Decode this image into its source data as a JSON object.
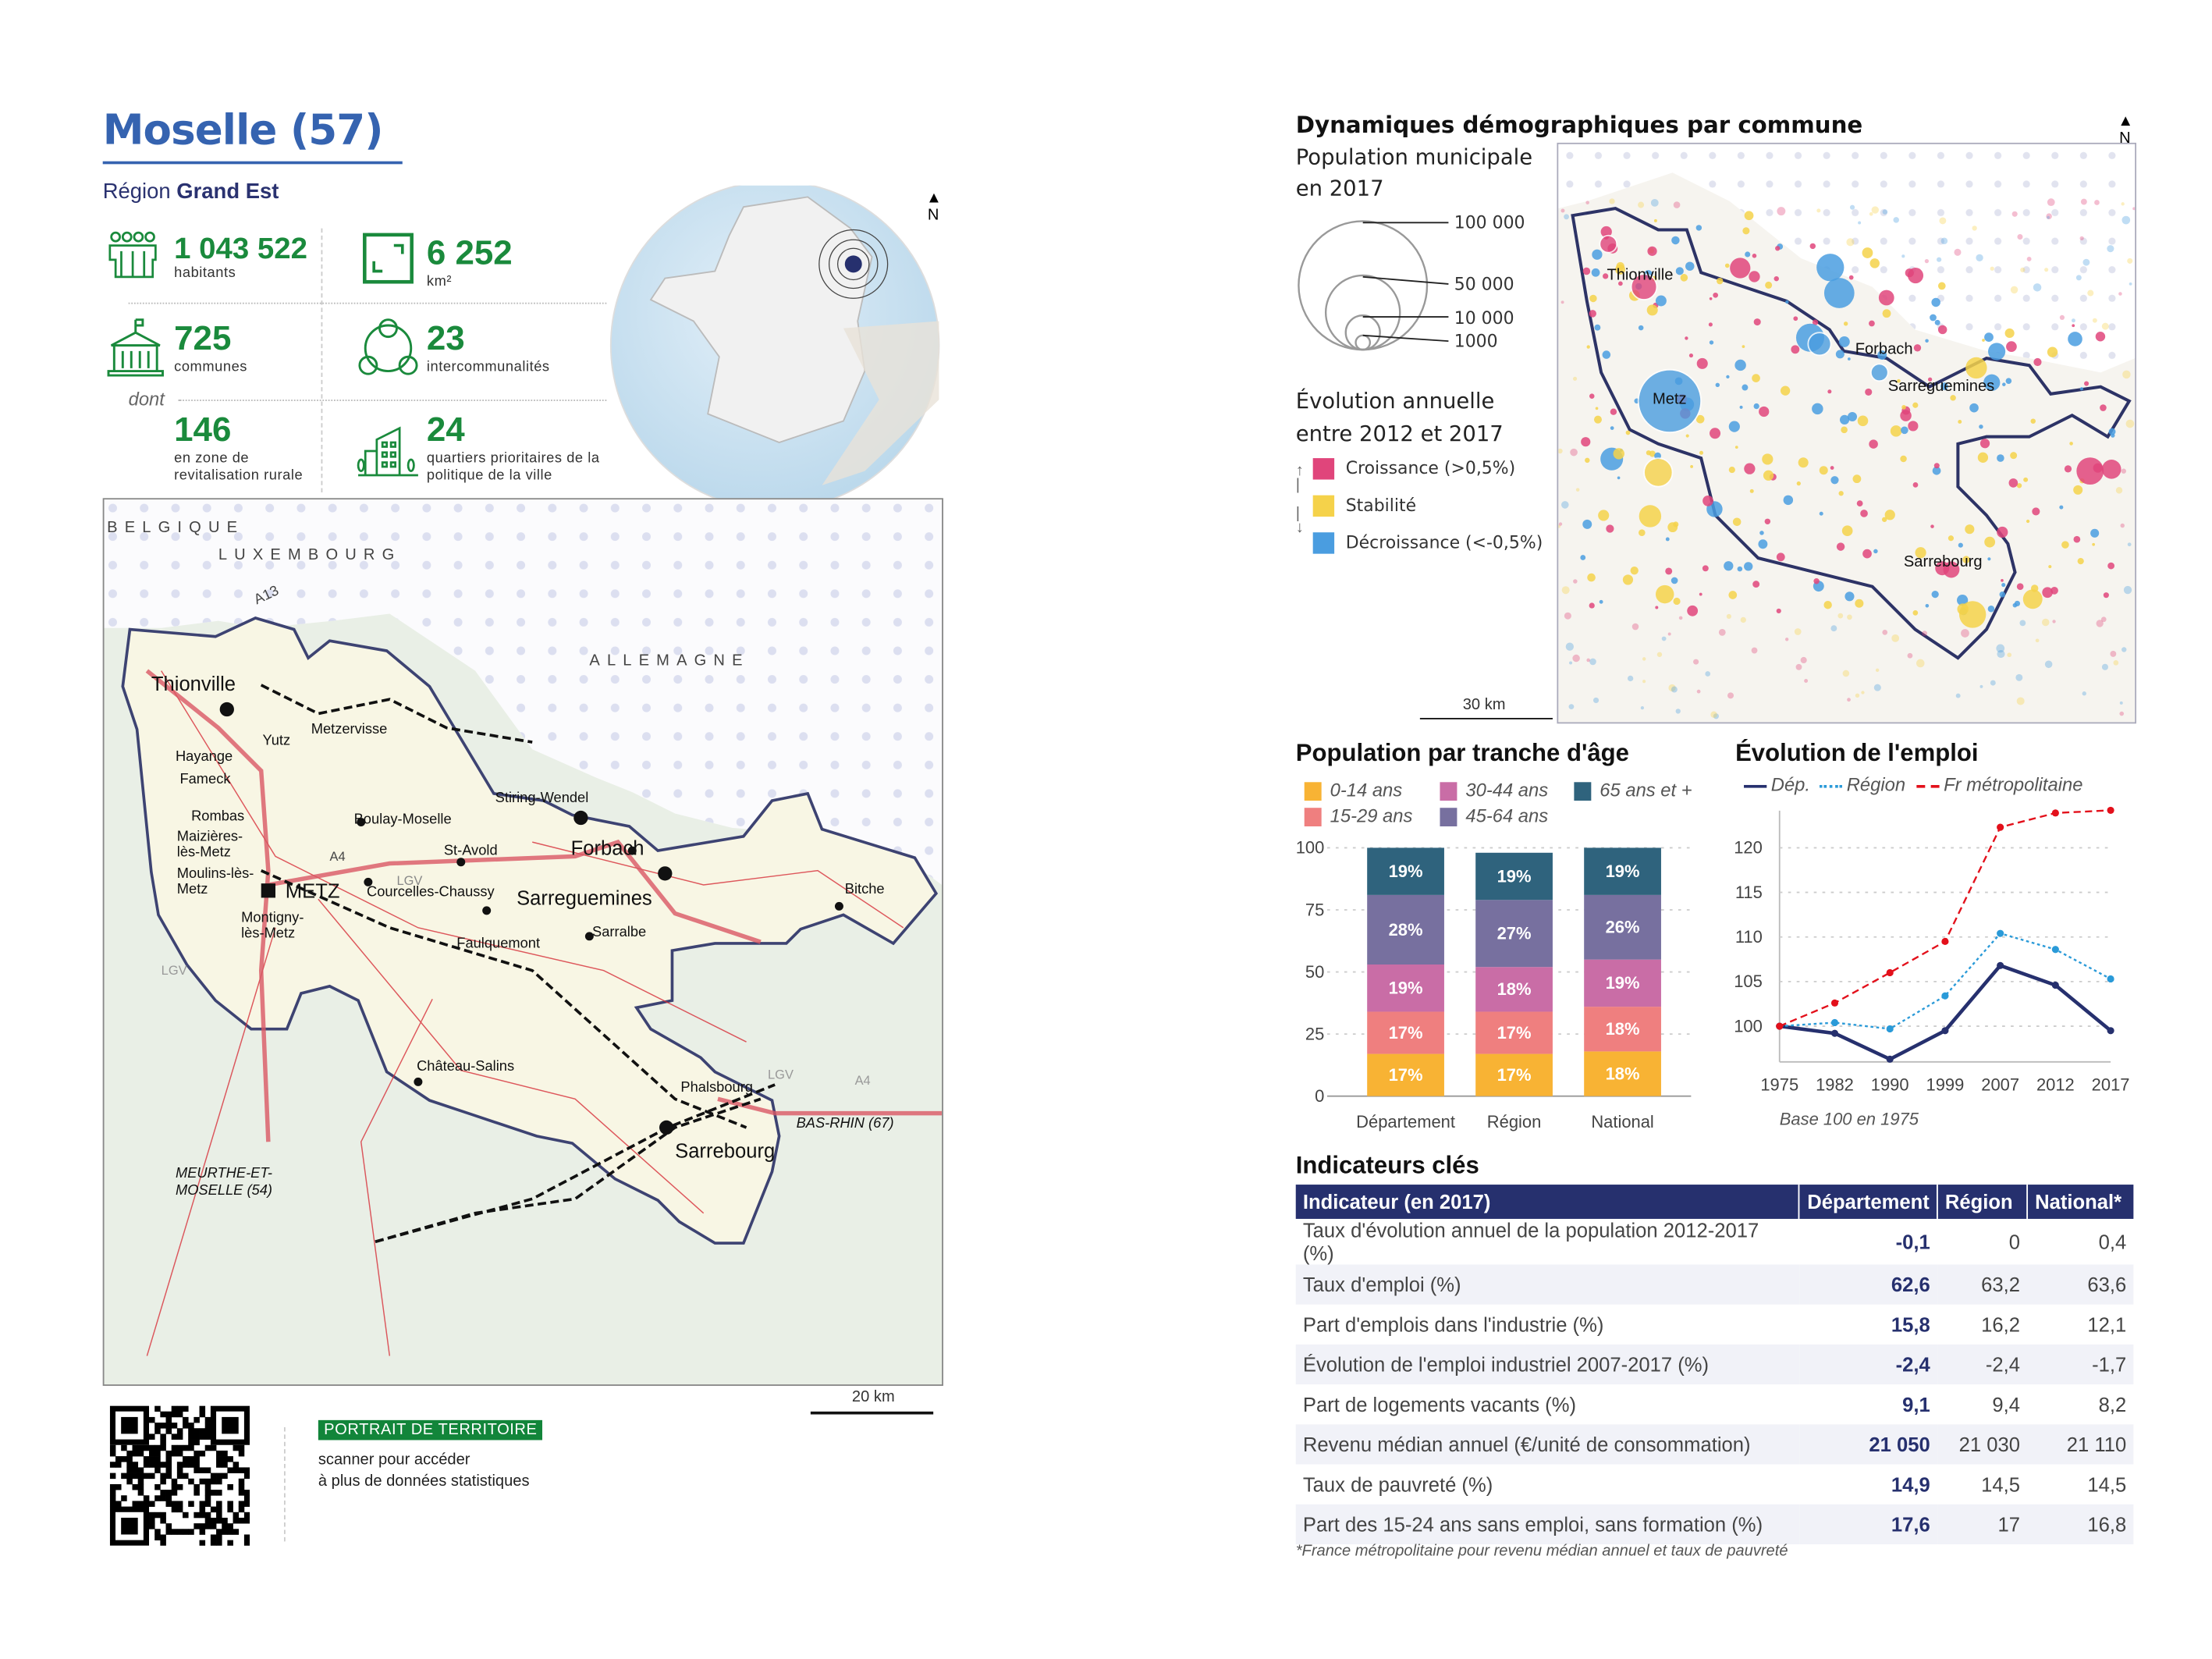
{
  "header": {
    "title": "Moselle (57)",
    "region_label": "Région",
    "region_name": "Grand Est"
  },
  "kpis": [
    {
      "icon": "people-icon",
      "value": "1 043 522",
      "label": "habitants"
    },
    {
      "icon": "area-icon",
      "value": "6 252",
      "label": "km²"
    },
    {
      "icon": "townhall-icon",
      "value": "725",
      "label": "communes"
    },
    {
      "icon": "network-icon",
      "value": "23",
      "label": "intercommunalités"
    },
    {
      "icon": "none",
      "value": "146",
      "label": "en zone de revitalisation rurale"
    },
    {
      "icon": "buildings-icon",
      "value": "24",
      "label": "quartiers prioritaires de la politique de la ville"
    }
  ],
  "kpi_dont": "dont",
  "north_label": "N",
  "map": {
    "countries": [
      "BELGIQUE",
      "LUXEMBOURG",
      "ALLEMAGNE"
    ],
    "roads": [
      "A13",
      "A4",
      "A4",
      "LGV",
      "LGV",
      "LGV",
      "A4"
    ],
    "towns": [
      "Thionville",
      "Metzervisse",
      "Yutz",
      "Hayange",
      "Fameck",
      "Rombas",
      "Maizières-lès-Metz",
      "Moulins-lès-Metz",
      "METZ",
      "Montigny-lès-Metz",
      "Boulay-Moselle",
      "Courcelles-Chaussy",
      "St-Avold",
      "Stiring-Wendel",
      "Forbach",
      "Sarreguemines",
      "Sarralbe",
      "Faulquemont",
      "Bitche",
      "Château-Salins",
      "Phalsbourg",
      "Sarrebourg"
    ],
    "departments": [
      "BAS-RHIN (67)",
      "MEURTHE-ET-MOSELLE (54)"
    ],
    "scale": "20 km"
  },
  "footer": {
    "badge": "PORTRAIT DE TERRITOIRE",
    "text1": "scanner pour accéder",
    "text2": "à plus de données statistiques"
  },
  "demo": {
    "title": "Dynamiques démographiques par commune",
    "pop_title": "Population municipale",
    "pop_sub": "en 2017",
    "sizes": [
      "100 000",
      "50 000",
      "10 000",
      "1000"
    ],
    "evo_title": "Évolution annuelle",
    "evo_sub": "entre 2012 et 2017",
    "classes": [
      {
        "label": "Croissance (>0,5%)",
        "color": "#e0457b"
      },
      {
        "label": "Stabilité",
        "color": "#f5d24a"
      },
      {
        "label": "Décroissance (<-0,5%)",
        "color": "#4a9de0"
      }
    ],
    "towns": [
      "Thionville",
      "Metz",
      "Forbach",
      "Sarreguemines",
      "Sarrebourg"
    ],
    "scale": "30 km"
  },
  "chart_data": [
    {
      "type": "bar",
      "stacked": true,
      "title": "Population par tranche d'âge",
      "categories": [
        "Département",
        "Région",
        "National"
      ],
      "ylim": [
        0,
        100
      ],
      "yticks": [
        "0",
        "25",
        "50",
        "75",
        "100"
      ],
      "series": [
        {
          "name": "0-14 ans",
          "color": "#f8b334",
          "values": [
            17,
            17,
            18
          ],
          "labels": [
            "17%",
            "17%",
            "18%"
          ]
        },
        {
          "name": "15-29 ans",
          "color": "#ef7f7f",
          "values": [
            17,
            17,
            18
          ],
          "labels": [
            "17%",
            "17%",
            "18%"
          ]
        },
        {
          "name": "30-44 ans",
          "color": "#c96da6",
          "values": [
            19,
            18,
            19
          ],
          "labels": [
            "19%",
            "18%",
            "19%"
          ]
        },
        {
          "name": "45-64 ans",
          "color": "#77709f",
          "values": [
            28,
            27,
            26
          ],
          "labels": [
            "28%",
            "27%",
            "26%"
          ]
        },
        {
          "name": "65 ans et +",
          "color": "#2f637d",
          "values": [
            19,
            19,
            19
          ],
          "labels": [
            "19%",
            "19%",
            "19%"
          ]
        }
      ]
    },
    {
      "type": "line",
      "title": "Évolution de l'emploi",
      "x": [
        "1975",
        "1982",
        "1990",
        "1999",
        "2007",
        "2012",
        "2017"
      ],
      "ylim": [
        96,
        124
      ],
      "yticks": [
        "100",
        "105",
        "110",
        "115",
        "120"
      ],
      "note": "Base 100 en 1975",
      "series": [
        {
          "name": "Dép.",
          "color": "#26306e",
          "style": "solid",
          "values": [
            100,
            99.2,
            96.3,
            99.5,
            106.8,
            104.6,
            99.5
          ]
        },
        {
          "name": "Région",
          "color": "#2a9ad8",
          "style": "dotted",
          "values": [
            100,
            100.4,
            99.7,
            103.4,
            110.4,
            108.6,
            105.3
          ]
        },
        {
          "name": "Fr métropolitaine",
          "color": "#e3101b",
          "style": "dashed",
          "values": [
            100,
            102.6,
            106.0,
            109.5,
            122.3,
            123.9,
            124.2
          ]
        }
      ]
    }
  ],
  "indicators": {
    "title": "Indicateurs clés",
    "headers": [
      "Indicateur (en 2017)",
      "Département",
      "Région",
      "National*"
    ],
    "rows": [
      [
        "Taux d'évolution annuel de la population 2012-2017 (%)",
        "-0,1",
        "0",
        "0,4"
      ],
      [
        "Taux d'emploi (%)",
        "62,6",
        "63,2",
        "63,6"
      ],
      [
        "Part d'emplois dans l'industrie (%)",
        "15,8",
        "16,2",
        "12,1"
      ],
      [
        "Évolution de l'emploi industriel 2007-2017 (%)",
        "-2,4",
        "-2,4",
        "-1,7"
      ],
      [
        "Part de logements vacants (%)",
        "9,1",
        "9,4",
        "8,2"
      ],
      [
        "Revenu médian annuel (€/unité de consommation)",
        "21 050",
        "21 030",
        "21 110"
      ],
      [
        "Taux de pauvreté (%)",
        "14,9",
        "14,5",
        "14,5"
      ],
      [
        "Part des 15-24 ans sans emploi, sans formation (%)",
        "17,6",
        "17",
        "16,8"
      ]
    ],
    "footnote": "*France métropolitaine pour revenu médian annuel et taux de pauvreté"
  }
}
